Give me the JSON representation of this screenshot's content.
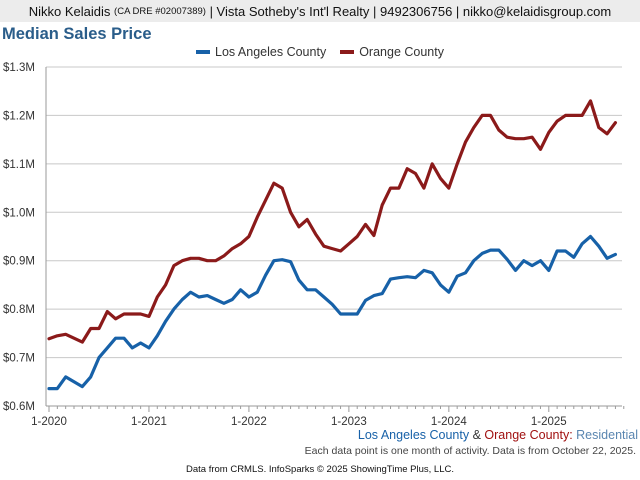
{
  "header": {
    "name": "Nikko Kelaidis",
    "license": "(CA DRE #02007389)",
    "company": "| Vista Sotheby's Int'l Realty | 9492306756 | nikko@kelaidisgroup.com"
  },
  "colors": {
    "la": "#1761a8",
    "oc": "#8b1a1a",
    "title": "#2a5d8a",
    "grid": "#c8c8c8",
    "axis_text": "#333333",
    "footer_blue": "#1761a8",
    "footer_red": "#a01010",
    "residential": "#5a86b0"
  },
  "chart_data": {
    "type": "line",
    "title": "Median Sales Price",
    "xlabel": "",
    "ylabel": "",
    "ylim": [
      600000,
      1300000
    ],
    "yticks": [
      600000,
      700000,
      800000,
      900000,
      1000000,
      1100000,
      1200000,
      1300000
    ],
    "ytick_labels": [
      "$0.6M",
      "$0.7M",
      "$0.8M",
      "$0.9M",
      "$1.0M",
      "$1.1M",
      "$1.2M",
      "$1.3M"
    ],
    "xtick_labels": [
      "1-2020",
      "1-2021",
      "1-2022",
      "1-2023",
      "1-2024",
      "1-2025"
    ],
    "x_start": "1-2020",
    "grid": true,
    "legend_position": "top-center",
    "series": [
      {
        "name": "Los Angeles County",
        "color": "#1761a8",
        "values": [
          636000,
          636000,
          660000,
          650000,
          640000,
          660000,
          700000,
          720000,
          740000,
          740000,
          720000,
          730000,
          720000,
          745000,
          775000,
          800000,
          820000,
          835000,
          825000,
          828000,
          820000,
          812000,
          820000,
          840000,
          825000,
          835000,
          870000,
          900000,
          902000,
          898000,
          860000,
          840000,
          840000,
          825000,
          810000,
          790000,
          790000,
          790000,
          818000,
          828000,
          832000,
          862000,
          865000,
          867000,
          865000,
          880000,
          875000,
          850000,
          835000,
          868000,
          875000,
          900000,
          915000,
          922000,
          922000,
          903000,
          880000,
          900000,
          890000,
          900000,
          880000,
          920000,
          920000,
          907000,
          935000,
          950000,
          930000,
          905000,
          913000
        ]
      },
      {
        "name": "Orange County",
        "color": "#8b1a1a",
        "values": [
          739000,
          745000,
          748000,
          740000,
          732000,
          760000,
          760000,
          795000,
          780000,
          790000,
          790000,
          790000,
          785000,
          825000,
          850000,
          890000,
          900000,
          905000,
          905000,
          900000,
          900000,
          910000,
          925000,
          935000,
          950000,
          990000,
          1025000,
          1060000,
          1050000,
          1000000,
          970000,
          985000,
          955000,
          930000,
          925000,
          920000,
          935000,
          950000,
          975000,
          952000,
          1015000,
          1050000,
          1050000,
          1090000,
          1080000,
          1050000,
          1100000,
          1070000,
          1050000,
          1100000,
          1145000,
          1175000,
          1200000,
          1200000,
          1170000,
          1155000,
          1152000,
          1152000,
          1155000,
          1130000,
          1165000,
          1188000,
          1200000,
          1200000,
          1200000,
          1230000,
          1175000,
          1162000,
          1185000
        ]
      }
    ]
  },
  "footer": {
    "la_label": "Los Angeles County",
    "amp": "&",
    "oc_label": "Orange County:",
    "residential": "Residential",
    "note": "Each data point is one month of activity. Data is from October 22, 2025.",
    "credit": "Data from CRMLS. InfoSparks © 2025 ShowingTime Plus, LLC."
  }
}
